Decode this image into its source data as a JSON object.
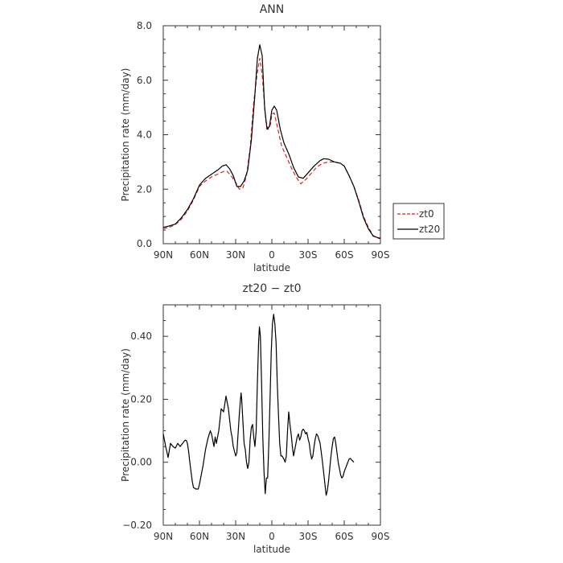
{
  "chart_data": [
    {
      "type": "line",
      "title": "ANN",
      "xlabel": "latitude",
      "ylabel": "Precipitation rate (mm/day)",
      "xlim": [
        90,
        -90
      ],
      "ylim": [
        0,
        8
      ],
      "x_ticks": [
        {
          "value": 90,
          "label": "90N"
        },
        {
          "value": 60,
          "label": "60N"
        },
        {
          "value": 30,
          "label": "30N"
        },
        {
          "value": 0,
          "label": "0"
        },
        {
          "value": -30,
          "label": "30S"
        },
        {
          "value": -60,
          "label": "60S"
        },
        {
          "value": -90,
          "label": "90S"
        }
      ],
      "y_ticks": [
        {
          "value": 0,
          "label": "0.0"
        },
        {
          "value": 2,
          "label": "2.0"
        },
        {
          "value": 4,
          "label": "4.0"
        },
        {
          "value": 6,
          "label": "6.0"
        },
        {
          "value": 8,
          "label": "8.0"
        }
      ],
      "legend": {
        "position": "right-outside"
      },
      "series": [
        {
          "name": "zt0",
          "color": "#dd2222",
          "dash": true,
          "points": [
            [
              90,
              0.55
            ],
            [
              85,
              0.6
            ],
            [
              80,
              0.7
            ],
            [
              75,
              0.9
            ],
            [
              70,
              1.2
            ],
            [
              65,
              1.6
            ],
            [
              60,
              2.1
            ],
            [
              55,
              2.3
            ],
            [
              50,
              2.45
            ],
            [
              45,
              2.55
            ],
            [
              40,
              2.65
            ],
            [
              37,
              2.65
            ],
            [
              33,
              2.45
            ],
            [
              30,
              2.25
            ],
            [
              27,
              2.0
            ],
            [
              24,
              2.05
            ],
            [
              21,
              2.5
            ],
            [
              18,
              3.5
            ],
            [
              15,
              5.2
            ],
            [
              12,
              6.3
            ],
            [
              10,
              6.8
            ],
            [
              8,
              6.2
            ],
            [
              5,
              4.5
            ],
            [
              3,
              4.2
            ],
            [
              1,
              4.4
            ],
            [
              0,
              4.75
            ],
            [
              -2,
              4.8
            ],
            [
              -5,
              4.2
            ],
            [
              -8,
              3.6
            ],
            [
              -12,
              3.2
            ],
            [
              -16,
              2.8
            ],
            [
              -20,
              2.45
            ],
            [
              -24,
              2.2
            ],
            [
              -28,
              2.35
            ],
            [
              -32,
              2.55
            ],
            [
              -37,
              2.8
            ],
            [
              -42,
              2.95
            ],
            [
              -47,
              3.0
            ],
            [
              -52,
              3.0
            ],
            [
              -57,
              2.95
            ],
            [
              -60,
              2.85
            ],
            [
              -64,
              2.5
            ],
            [
              -68,
              2.1
            ],
            [
              -72,
              1.6
            ],
            [
              -76,
              1.0
            ],
            [
              -80,
              0.6
            ],
            [
              -84,
              0.3
            ],
            [
              -88,
              0.2
            ],
            [
              -90,
              0.18
            ]
          ]
        },
        {
          "name": "zt20",
          "color": "#000000",
          "dash": false,
          "points": [
            [
              90,
              0.6
            ],
            [
              85,
              0.65
            ],
            [
              80,
              0.72
            ],
            [
              75,
              0.95
            ],
            [
              70,
              1.25
            ],
            [
              65,
              1.65
            ],
            [
              60,
              2.15
            ],
            [
              55,
              2.4
            ],
            [
              50,
              2.55
            ],
            [
              45,
              2.7
            ],
            [
              41,
              2.85
            ],
            [
              38,
              2.9
            ],
            [
              35,
              2.75
            ],
            [
              32,
              2.5
            ],
            [
              29,
              2.1
            ],
            [
              26,
              2.1
            ],
            [
              23,
              2.3
            ],
            [
              20,
              2.7
            ],
            [
              17,
              3.8
            ],
            [
              14,
              5.5
            ],
            [
              12,
              6.8
            ],
            [
              10,
              7.3
            ],
            [
              8,
              6.9
            ],
            [
              6,
              5.0
            ],
            [
              4,
              4.2
            ],
            [
              2,
              4.3
            ],
            [
              0,
              4.9
            ],
            [
              -2,
              5.05
            ],
            [
              -4,
              4.9
            ],
            [
              -7,
              4.2
            ],
            [
              -10,
              3.7
            ],
            [
              -14,
              3.3
            ],
            [
              -18,
              2.8
            ],
            [
              -22,
              2.45
            ],
            [
              -26,
              2.4
            ],
            [
              -30,
              2.6
            ],
            [
              -35,
              2.85
            ],
            [
              -40,
              3.05
            ],
            [
              -43,
              3.12
            ],
            [
              -47,
              3.1
            ],
            [
              -52,
              3.0
            ],
            [
              -57,
              2.95
            ],
            [
              -60,
              2.85
            ],
            [
              -64,
              2.5
            ],
            [
              -68,
              2.1
            ],
            [
              -72,
              1.55
            ],
            [
              -76,
              0.95
            ],
            [
              -80,
              0.55
            ],
            [
              -84,
              0.28
            ],
            [
              -88,
              0.22
            ],
            [
              -90,
              0.2
            ]
          ]
        }
      ]
    },
    {
      "type": "line",
      "title": "zt20 − zt0",
      "xlabel": "latitude",
      "ylabel": "Precipitation rate (mm/day)",
      "xlim": [
        90,
        -90
      ],
      "ylim": [
        -0.2,
        0.5
      ],
      "x_ticks": [
        {
          "value": 90,
          "label": "90N"
        },
        {
          "value": 60,
          "label": "60N"
        },
        {
          "value": 30,
          "label": "30N"
        },
        {
          "value": 0,
          "label": "0"
        },
        {
          "value": -30,
          "label": "30S"
        },
        {
          "value": -60,
          "label": "60S"
        },
        {
          "value": -90,
          "label": "90S"
        }
      ],
      "y_ticks": [
        {
          "value": -0.2,
          "label": "−0.20"
        },
        {
          "value": 0,
          "label": "0.00"
        },
        {
          "value": 0.2,
          "label": "0.20"
        },
        {
          "value": 0.4,
          "label": "0.40"
        }
      ],
      "series": [
        {
          "name": "",
          "color": "#000000",
          "dash": false,
          "points": [
            [
              90,
              0.09
            ],
            [
              88,
              0.05
            ],
            [
              86,
              0.015
            ],
            [
              84,
              0.06
            ],
            [
              82,
              0.05
            ],
            [
              80,
              0.045
            ],
            [
              78,
              0.06
            ],
            [
              76,
              0.05
            ],
            [
              74,
              0.06
            ],
            [
              72,
              0.07
            ],
            [
              71,
              0.07
            ],
            [
              70,
              0.06
            ],
            [
              69,
              0.035
            ],
            [
              68,
              0.0
            ],
            [
              67,
              -0.03
            ],
            [
              66,
              -0.06
            ],
            [
              65,
              -0.08
            ],
            [
              63,
              -0.085
            ],
            [
              61,
              -0.085
            ],
            [
              60,
              -0.07
            ],
            [
              59,
              -0.05
            ],
            [
              57,
              -0.01
            ],
            [
              55,
              0.04
            ],
            [
              53,
              0.075
            ],
            [
              51,
              0.1
            ],
            [
              50,
              0.09
            ],
            [
              48,
              0.05
            ],
            [
              47,
              0.08
            ],
            [
              46,
              0.06
            ],
            [
              44,
              0.1
            ],
            [
              42,
              0.17
            ],
            [
              40,
              0.16
            ],
            [
              38,
              0.21
            ],
            [
              36,
              0.17
            ],
            [
              34,
              0.1
            ],
            [
              33,
              0.08
            ],
            [
              32,
              0.05
            ],
            [
              30,
              0.02
            ],
            [
              29,
              0.03
            ],
            [
              28,
              0.09
            ],
            [
              27,
              0.15
            ],
            [
              26,
              0.2
            ],
            [
              25.5,
              0.22
            ],
            [
              25,
              0.2
            ],
            [
              24,
              0.13
            ],
            [
              23,
              0.06
            ],
            [
              22,
              0.04
            ],
            [
              21,
              0.0
            ],
            [
              20,
              -0.02
            ],
            [
              19,
              0.0
            ],
            [
              18,
              0.07
            ],
            [
              17,
              0.11
            ],
            [
              16,
              0.12
            ],
            [
              15,
              0.08
            ],
            [
              14,
              0.05
            ],
            [
              13,
              0.1
            ],
            [
              12,
              0.25
            ],
            [
              11,
              0.38
            ],
            [
              10.3,
              0.43
            ],
            [
              9.5,
              0.4
            ],
            [
              8.5,
              0.25
            ],
            [
              7.5,
              0.08
            ],
            [
              6.5,
              -0.03
            ],
            [
              5.5,
              -0.1
            ],
            [
              4.5,
              -0.05
            ],
            [
              3.5,
              -0.05
            ],
            [
              2.5,
              0.06
            ],
            [
              1.5,
              0.2
            ],
            [
              0.5,
              0.35
            ],
            [
              -0.5,
              0.44
            ],
            [
              -1.5,
              0.47
            ],
            [
              -2.5,
              0.44
            ],
            [
              -3.5,
              0.38
            ],
            [
              -4.5,
              0.25
            ],
            [
              -5.5,
              0.15
            ],
            [
              -6.5,
              0.06
            ],
            [
              -7.5,
              0.02
            ],
            [
              -8.5,
              0.02
            ],
            [
              -10,
              0.01
            ],
            [
              -11,
              0.0
            ],
            [
              -12,
              0.02
            ],
            [
              -13,
              0.1
            ],
            [
              -14,
              0.16
            ],
            [
              -15,
              0.12
            ],
            [
              -16,
              0.09
            ],
            [
              -17,
              0.05
            ],
            [
              -18,
              0.02
            ],
            [
              -19,
              0.04
            ],
            [
              -20,
              0.06
            ],
            [
              -21,
              0.08
            ],
            [
              -22,
              0.09
            ],
            [
              -23,
              0.07
            ],
            [
              -24,
              0.08
            ],
            [
              -25,
              0.1
            ],
            [
              -26,
              0.105
            ],
            [
              -27,
              0.1
            ],
            [
              -28,
              0.09
            ],
            [
              -29,
              0.095
            ],
            [
              -30,
              0.075
            ],
            [
              -31,
              0.06
            ],
            [
              -32,
              0.03
            ],
            [
              -33,
              0.01
            ],
            [
              -34,
              0.02
            ],
            [
              -35,
              0.05
            ],
            [
              -36,
              0.075
            ],
            [
              -37,
              0.09
            ],
            [
              -38,
              0.085
            ],
            [
              -40,
              0.06
            ],
            [
              -42,
              0.0
            ],
            [
              -44,
              -0.07
            ],
            [
              -45,
              -0.105
            ],
            [
              -46,
              -0.09
            ],
            [
              -47,
              -0.06
            ],
            [
              -48,
              -0.02
            ],
            [
              -49,
              0.02
            ],
            [
              -50,
              0.05
            ],
            [
              -51,
              0.075
            ],
            [
              -52,
              0.08
            ],
            [
              -53,
              0.06
            ],
            [
              -54,
              0.03
            ],
            [
              -55,
              0.0
            ],
            [
              -56,
              -0.02
            ],
            [
              -57,
              -0.04
            ],
            [
              -58,
              -0.05
            ],
            [
              -59,
              -0.045
            ],
            [
              -60,
              -0.03
            ],
            [
              -62,
              -0.01
            ],
            [
              -64,
              0.01
            ],
            [
              -65,
              0.012
            ],
            [
              -66,
              0.008
            ],
            [
              -68,
              0.0
            ]
          ]
        }
      ]
    }
  ]
}
